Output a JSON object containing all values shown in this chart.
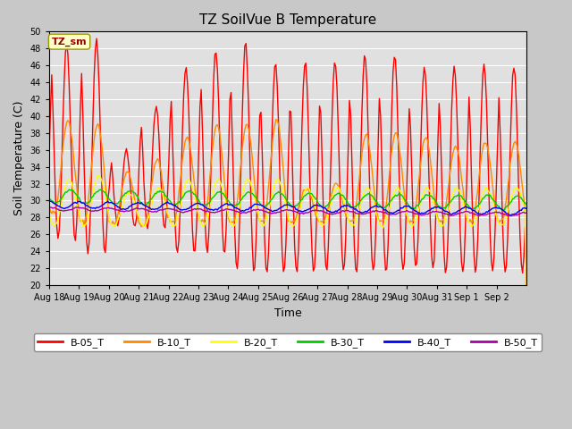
{
  "title": "TZ SoilVue B Temperature",
  "xlabel": "Time",
  "ylabel": "Soil Temperature (C)",
  "ylim": [
    20,
    50
  ],
  "yticks": [
    20,
    22,
    24,
    26,
    28,
    30,
    32,
    34,
    36,
    38,
    40,
    42,
    44,
    46,
    48,
    50
  ],
  "legend_label": "TZ_sm",
  "legend_label_color": "#990000",
  "legend_box_facecolor": "#ffffcc",
  "legend_box_edgecolor": "#999900",
  "bg_color": "#c8c8c8",
  "plot_bg_color": "#e0e0e0",
  "series_colors": {
    "B-05_T": "#ff0000",
    "B-10_T": "#ff8800",
    "B-20_T": "#ffff00",
    "B-30_T": "#00cc00",
    "B-40_T": "#0000ff",
    "B-50_T": "#aa00aa"
  },
  "xtick_labels": [
    "Aug 18",
    "Aug 19",
    "Aug 20",
    "Aug 21",
    "Aug 22",
    "Aug 23",
    "Aug 24",
    "Aug 25",
    "Aug 26",
    "Aug 27",
    "Aug 28",
    "Aug 29",
    "Aug 30",
    "Aug 31",
    "Sep 1",
    "Sep 2"
  ],
  "line_width": 1.0,
  "figsize": [
    6.4,
    4.8
  ],
  "dpi": 100
}
